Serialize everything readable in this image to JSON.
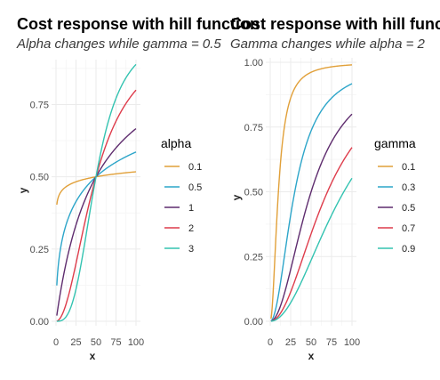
{
  "colors": [
    "#E1A039",
    "#2CA5C9",
    "#5E2C6E",
    "#DE3C4B",
    "#33C3B1"
  ],
  "chart_data": [
    {
      "type": "line",
      "title": "Cost response with hill function",
      "subtitle": "Alpha changes while gamma = 0.5",
      "xlabel": "x",
      "ylabel": "y",
      "xlim": [
        0,
        100
      ],
      "ylim": [
        0,
        0.89
      ],
      "x_ticks": [
        "0",
        "25",
        "50",
        "75",
        "100"
      ],
      "y_ticks": [
        "0.00",
        "0.25",
        "0.50",
        "0.75"
      ],
      "legend_title": "alpha",
      "legend_position": "right",
      "grid": true,
      "function": "y = x^alpha / (x^alpha + (gamma*100)^alpha)",
      "series": [
        {
          "name": "0.1",
          "alpha": 0.1,
          "gamma": 0.5,
          "x": [
            1,
            25,
            50,
            75,
            100
          ],
          "y": [
            0.406,
            0.483,
            0.5,
            0.51,
            0.517
          ]
        },
        {
          "name": "0.5",
          "alpha": 0.5,
          "gamma": 0.5,
          "x": [
            1,
            25,
            50,
            75,
            100
          ],
          "y": [
            0.124,
            0.414,
            0.5,
            0.551,
            0.586
          ]
        },
        {
          "name": "1",
          "alpha": 1,
          "gamma": 0.5,
          "x": [
            1,
            25,
            50,
            75,
            100
          ],
          "y": [
            0.02,
            0.333,
            0.5,
            0.6,
            0.667
          ]
        },
        {
          "name": "2",
          "alpha": 2,
          "gamma": 0.5,
          "x": [
            1,
            25,
            50,
            75,
            100
          ],
          "y": [
            0.0004,
            0.2,
            0.5,
            0.692,
            0.8
          ]
        },
        {
          "name": "3",
          "alpha": 3,
          "gamma": 0.5,
          "x": [
            1,
            25,
            50,
            75,
            100
          ],
          "y": [
            1e-05,
            0.111,
            0.5,
            0.771,
            0.889
          ]
        }
      ]
    },
    {
      "type": "line",
      "title": "Cost response with hill function",
      "subtitle": "Gamma changes while alpha = 2",
      "xlabel": "x",
      "ylabel": "y",
      "xlim": [
        0,
        100
      ],
      "ylim": [
        0,
        1.0
      ],
      "x_ticks": [
        "0",
        "25",
        "50",
        "75",
        "100"
      ],
      "y_ticks": [
        "0.00",
        "0.25",
        "0.50",
        "0.75",
        "1.00"
      ],
      "legend_title": "gamma",
      "legend_position": "right",
      "grid": true,
      "function": "y = x^alpha / (x^alpha + (gamma*100)^alpha)",
      "series": [
        {
          "name": "0.1",
          "alpha": 2,
          "gamma": 0.1,
          "x": [
            1,
            25,
            50,
            75,
            100
          ],
          "y": [
            0.0099,
            0.862,
            0.962,
            0.983,
            0.99
          ]
        },
        {
          "name": "0.3",
          "alpha": 2,
          "gamma": 0.3,
          "x": [
            1,
            25,
            50,
            75,
            100
          ],
          "y": [
            0.0011,
            0.41,
            0.735,
            0.862,
            0.917
          ]
        },
        {
          "name": "0.5",
          "alpha": 2,
          "gamma": 0.5,
          "x": [
            1,
            25,
            50,
            75,
            100
          ],
          "y": [
            0.0004,
            0.2,
            0.5,
            0.692,
            0.8
          ]
        },
        {
          "name": "0.7",
          "alpha": 2,
          "gamma": 0.7,
          "x": [
            1,
            25,
            50,
            75,
            100
          ],
          "y": [
            0.0002,
            0.113,
            0.338,
            0.534,
            0.671
          ]
        },
        {
          "name": "0.9",
          "alpha": 2,
          "gamma": 0.9,
          "x": [
            1,
            25,
            50,
            75,
            100
          ],
          "y": [
            0.0001,
            0.072,
            0.236,
            0.41,
            0.552
          ]
        }
      ]
    }
  ]
}
